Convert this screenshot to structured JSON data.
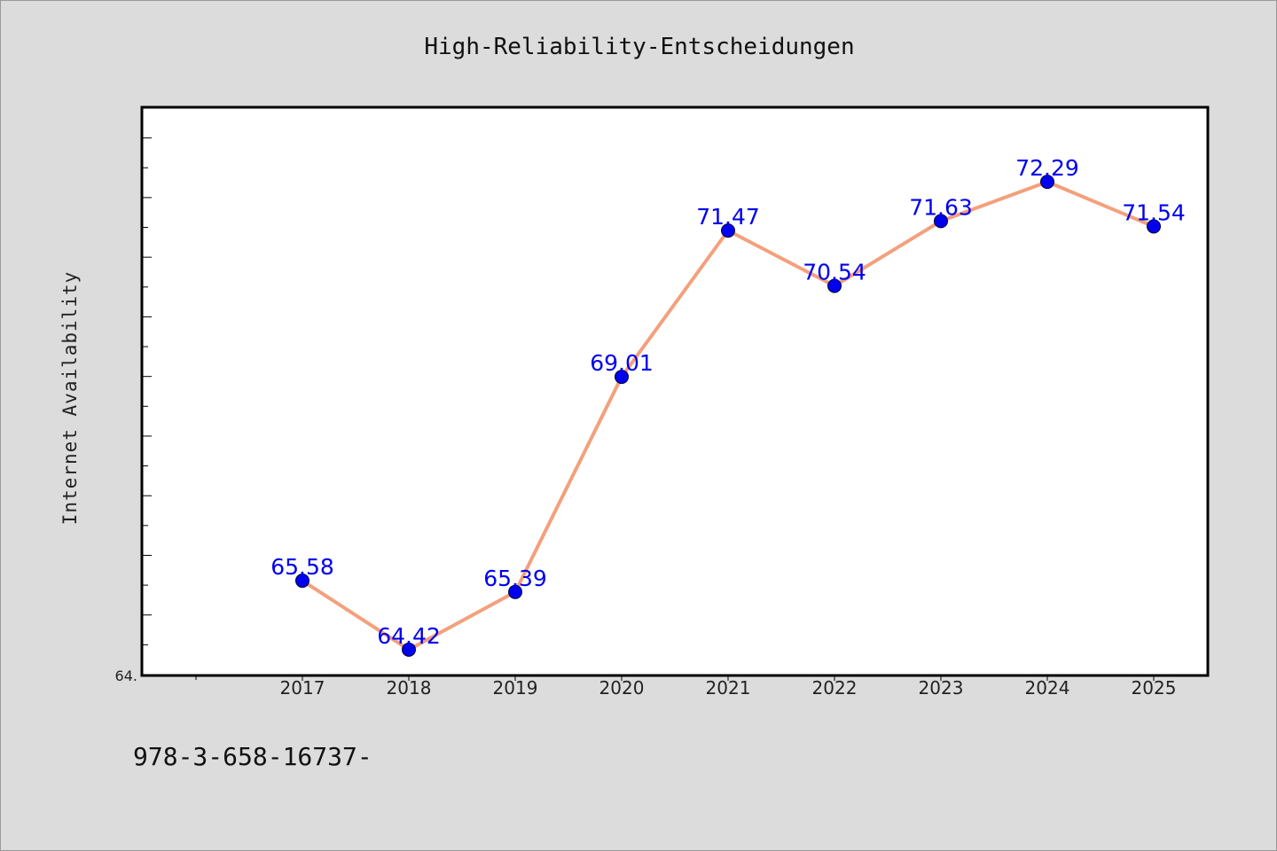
{
  "chart_data": {
    "type": "line",
    "title": "High-Reliability-Entscheidungen",
    "xlabel": "",
    "ylabel": "Internet Availability",
    "categories": [
      "2017",
      "2018",
      "2019",
      "2020",
      "2021",
      "2022",
      "2023",
      "2024",
      "2025"
    ],
    "series": [
      {
        "values": [
          65.58,
          64.42,
          65.39,
          69.01,
          71.47,
          70.54,
          71.63,
          72.29,
          71.54
        ],
        "labels": [
          "65.58",
          "64.42",
          "65.39",
          "69.01",
          "71.47",
          "70.54",
          "71.63",
          "72.29",
          "71.54"
        ],
        "line_color": "#f4a07c",
        "marker_color": "#0000ee"
      }
    ],
    "ylim": [
      64.0,
      73.53
    ],
    "y_tick_label": "64.",
    "grid": false,
    "legend": "none"
  },
  "footer": {
    "text": "978-3-658-16737-"
  },
  "colors": {
    "background": "#dcdcdc",
    "plot_background": "#ffffff",
    "line": "#f4a07c",
    "marker": "#0000ee",
    "data_label": "#0000ee"
  }
}
